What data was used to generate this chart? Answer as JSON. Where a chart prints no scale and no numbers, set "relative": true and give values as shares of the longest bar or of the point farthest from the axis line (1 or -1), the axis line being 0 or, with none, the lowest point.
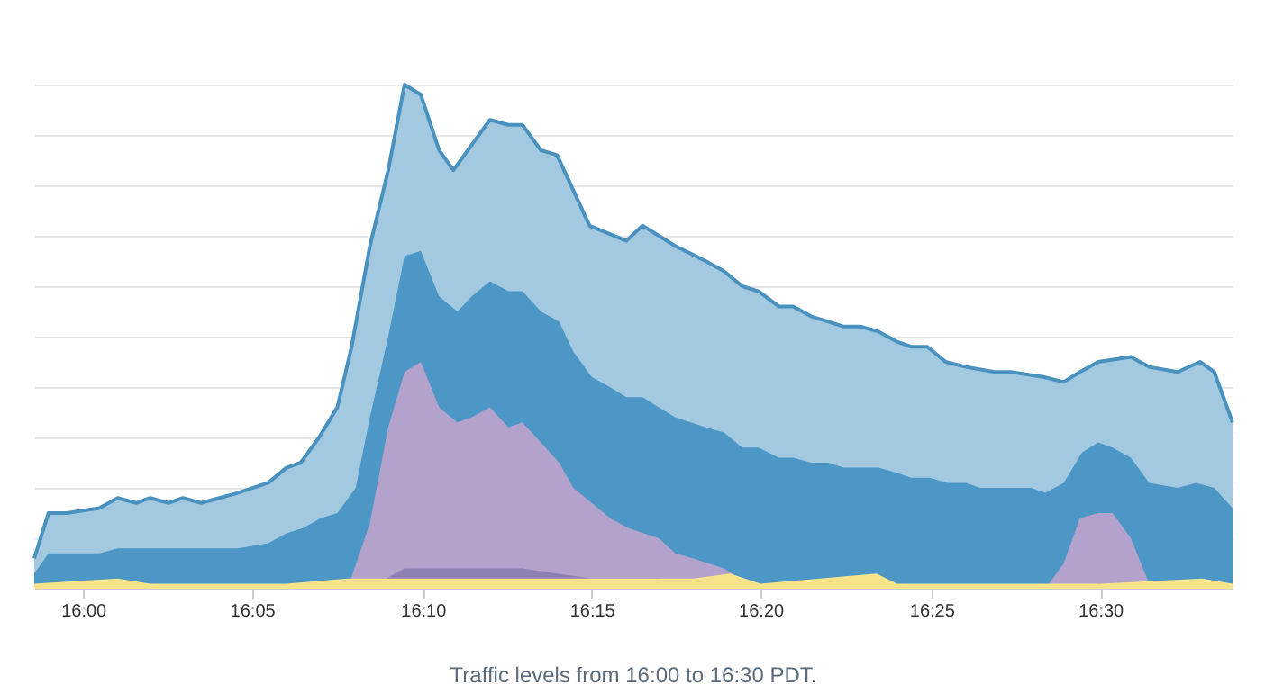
{
  "chart_data": {
    "type": "area",
    "relative": true,
    "grid": true,
    "annotations": [
      "Traffic levels from 16:00 to 16:30 PDT."
    ],
    "xlim": [
      15.976,
      16.565
    ],
    "xticks": [
      {
        "value": 16,
        "label": "16:00"
      },
      {
        "value": 16.083,
        "label": "16:05"
      },
      {
        "value": 16.167,
        "label": "16:10"
      },
      {
        "value": 16.25,
        "label": "16:15"
      },
      {
        "value": 16.333,
        "label": "16:20"
      },
      {
        "value": 16.417,
        "label": "16:25"
      },
      {
        "value": 16.5,
        "label": "16:30"
      }
    ],
    "series": [
      {
        "color": "#a3c9e1",
        "x": [
          15.976,
          15.983,
          15.992,
          16.008,
          16.017,
          16.026,
          16.033,
          16.042,
          16.049,
          16.058,
          16.067,
          16.076,
          16.091,
          16.1,
          16.107,
          16.116,
          16.125,
          16.132,
          16.141,
          16.15,
          16.158,
          16.166,
          16.175,
          16.182,
          16.191,
          16.2,
          16.209,
          16.216,
          16.225,
          16.233,
          16.249,
          16.267,
          16.275,
          16.283,
          16.291,
          16.306,
          16.315,
          16.324,
          16.332,
          16.342,
          16.349,
          16.358,
          16.366,
          16.374,
          16.382,
          16.391,
          16.4,
          16.407,
          16.415,
          16.424,
          16.434,
          16.448,
          16.456,
          16.472,
          16.482,
          16.49,
          16.499,
          16.515,
          16.524,
          16.538,
          16.549,
          16.556,
          16.565
        ],
        "values": [
          0.06,
          0.15,
          0.15,
          0.16,
          0.18,
          0.17,
          0.18,
          0.17,
          0.18,
          0.17,
          0.18,
          0.19,
          0.21,
          0.24,
          0.25,
          0.3,
          0.36,
          0.48,
          0.68,
          0.83,
          1,
          0.98,
          0.87,
          0.83,
          0.88,
          0.93,
          0.92,
          0.92,
          0.87,
          0.86,
          0.72,
          0.69,
          0.72,
          0.7,
          0.68,
          0.65,
          0.63,
          0.6,
          0.59,
          0.56,
          0.56,
          0.54,
          0.53,
          0.52,
          0.52,
          0.51,
          0.49,
          0.48,
          0.48,
          0.45,
          0.44,
          0.43,
          0.43,
          0.42,
          0.41,
          0.43,
          0.45,
          0.46,
          0.44,
          0.43,
          0.45,
          0.43,
          0.33
        ]
      },
      {
        "color": "#4d97c7",
        "x": [
          15.976,
          15.983,
          15.999,
          16.008,
          16.017,
          16.026,
          16.035,
          16.043,
          16.051,
          16.06,
          16.067,
          16.076,
          16.091,
          16.1,
          16.108,
          16.117,
          16.125,
          16.134,
          16.141,
          16.15,
          16.158,
          16.166,
          16.175,
          16.184,
          16.191,
          16.2,
          16.209,
          16.216,
          16.225,
          16.234,
          16.241,
          16.25,
          16.259,
          16.267,
          16.275,
          16.283,
          16.291,
          16.306,
          16.315,
          16.324,
          16.332,
          16.342,
          16.349,
          16.358,
          16.366,
          16.374,
          16.382,
          16.391,
          16.4,
          16.407,
          16.416,
          16.425,
          16.434,
          16.441,
          16.448,
          16.457,
          16.466,
          16.473,
          16.482,
          16.491,
          16.499,
          16.506,
          16.515,
          16.524,
          16.538,
          16.547,
          16.556,
          16.565
        ],
        "values": [
          0.03,
          0.07,
          0.07,
          0.07,
          0.08,
          0.08,
          0.08,
          0.08,
          0.08,
          0.08,
          0.08,
          0.08,
          0.09,
          0.11,
          0.12,
          0.14,
          0.15,
          0.2,
          0.34,
          0.5,
          0.66,
          0.67,
          0.58,
          0.55,
          0.58,
          0.61,
          0.59,
          0.59,
          0.55,
          0.53,
          0.47,
          0.42,
          0.4,
          0.38,
          0.38,
          0.36,
          0.34,
          0.32,
          0.31,
          0.28,
          0.28,
          0.26,
          0.26,
          0.25,
          0.25,
          0.24,
          0.24,
          0.24,
          0.23,
          0.22,
          0.22,
          0.21,
          0.21,
          0.2,
          0.2,
          0.2,
          0.2,
          0.19,
          0.21,
          0.27,
          0.29,
          0.28,
          0.26,
          0.21,
          0.2,
          0.21,
          0.2,
          0.16
        ]
      },
      {
        "color": "#b3a2cc",
        "x": [
          16.13,
          16.141,
          16.15,
          16.158,
          16.166,
          16.175,
          16.184,
          16.191,
          16.2,
          16.209,
          16.216,
          16.225,
          16.234,
          16.241,
          16.25,
          16.259,
          16.268,
          16.283,
          16.291,
          16.3,
          16.315,
          16.323,
          16.327,
          16.473,
          16.482,
          16.49,
          16.499,
          16.506,
          16.515,
          16.524,
          16.527
        ],
        "values": [
          0,
          0.13,
          0.32,
          0.43,
          0.45,
          0.36,
          0.33,
          0.34,
          0.36,
          0.32,
          0.33,
          0.29,
          0.25,
          0.2,
          0.17,
          0.14,
          0.12,
          0.1,
          0.07,
          0.06,
          0.04,
          0.02,
          0,
          0,
          0.05,
          0.14,
          0.15,
          0.15,
          0.1,
          0.01,
          0
        ]
      },
      {
        "color": "#8e7fb5",
        "x": [
          16.14,
          16.158,
          16.175,
          16.2,
          16.216,
          16.233,
          16.25,
          16.267,
          16.283,
          16.33,
          16.48,
          16.5,
          16.52
        ],
        "values": [
          0,
          0.04,
          0.04,
          0.04,
          0.04,
          0.03,
          0.02,
          0.02,
          0.02,
          0,
          0,
          0.01,
          0
        ]
      },
      {
        "color": "#f7e48a",
        "x": [
          15.976,
          16.017,
          16.033,
          16.1,
          16.13,
          16.2,
          16.216,
          16.3,
          16.318,
          16.333,
          16.39,
          16.4,
          16.5,
          16.55,
          16.565
        ],
        "values": [
          0.01,
          0.02,
          0.01,
          0.01,
          0.02,
          0.02,
          0.02,
          0.02,
          0.03,
          0.01,
          0.03,
          0.01,
          0.01,
          0.02,
          0.01
        ]
      }
    ]
  }
}
